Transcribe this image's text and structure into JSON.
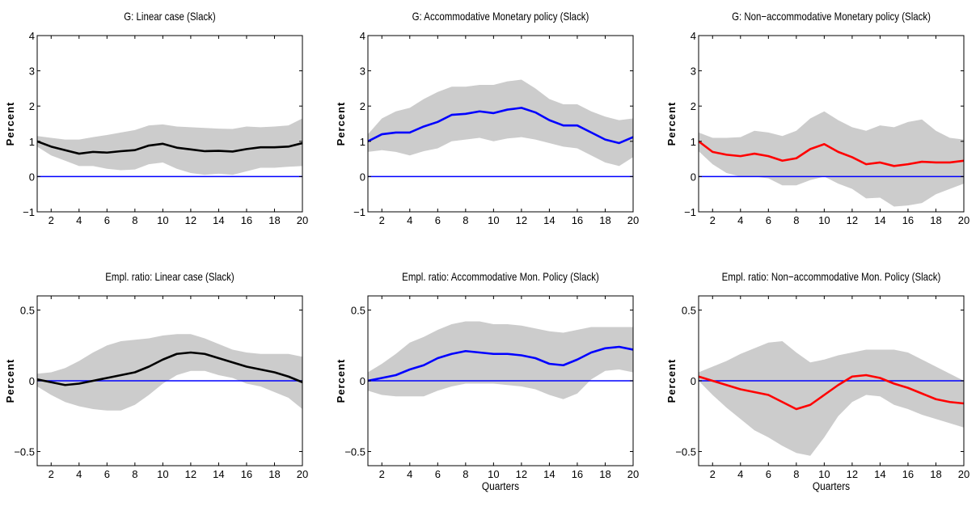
{
  "chart_data": [
    {
      "type": "line",
      "title": "G: Linear case (Slack)",
      "ylabel": "Percent",
      "xlabel": "",
      "xlim": [
        1,
        20
      ],
      "ylim": [
        -1,
        4
      ],
      "xticks": [
        2,
        4,
        6,
        8,
        10,
        12,
        14,
        16,
        18,
        20
      ],
      "yticks": [
        -1,
        0,
        1,
        2,
        3,
        4
      ],
      "ytick_labels": [
        "−1",
        "0",
        "1",
        "2",
        "3",
        "4"
      ],
      "line_color": "#000000",
      "band_color": "#cccccc",
      "zero_line_color": "#0000ff",
      "x": [
        1,
        2,
        3,
        4,
        5,
        6,
        7,
        8,
        9,
        10,
        11,
        12,
        13,
        14,
        15,
        16,
        17,
        18,
        19,
        20
      ],
      "values": [
        1.0,
        0.85,
        0.75,
        0.65,
        0.7,
        0.68,
        0.72,
        0.75,
        0.88,
        0.93,
        0.82,
        0.77,
        0.72,
        0.73,
        0.71,
        0.78,
        0.83,
        0.83,
        0.85,
        0.95
      ],
      "upper": [
        1.15,
        1.1,
        1.05,
        1.05,
        1.12,
        1.18,
        1.25,
        1.32,
        1.45,
        1.48,
        1.42,
        1.4,
        1.38,
        1.36,
        1.35,
        1.42,
        1.4,
        1.42,
        1.45,
        1.65
      ],
      "lower": [
        0.85,
        0.6,
        0.45,
        0.3,
        0.3,
        0.22,
        0.18,
        0.2,
        0.35,
        0.4,
        0.22,
        0.1,
        0.05,
        0.08,
        0.05,
        0.15,
        0.25,
        0.25,
        0.28,
        0.3
      ]
    },
    {
      "type": "line",
      "title": "G: Accommodative Monetary policy (Slack)",
      "ylabel": "Percent",
      "xlabel": "",
      "xlim": [
        1,
        20
      ],
      "ylim": [
        -1,
        4
      ],
      "xticks": [
        2,
        4,
        6,
        8,
        10,
        12,
        14,
        16,
        18,
        20
      ],
      "yticks": [
        -1,
        0,
        1,
        2,
        3,
        4
      ],
      "ytick_labels": [
        "−1",
        "0",
        "1",
        "2",
        "3",
        "4"
      ],
      "line_color": "#0000ff",
      "band_color": "#cccccc",
      "zero_line_color": "#0000ff",
      "x": [
        1,
        2,
        3,
        4,
        5,
        6,
        7,
        8,
        9,
        10,
        11,
        12,
        13,
        14,
        15,
        16,
        17,
        18,
        19,
        20
      ],
      "values": [
        1.0,
        1.2,
        1.25,
        1.25,
        1.42,
        1.55,
        1.75,
        1.78,
        1.85,
        1.8,
        1.9,
        1.95,
        1.82,
        1.6,
        1.45,
        1.45,
        1.25,
        1.05,
        0.95,
        1.12
      ],
      "upper": [
        1.2,
        1.65,
        1.85,
        1.95,
        2.2,
        2.4,
        2.55,
        2.55,
        2.6,
        2.6,
        2.7,
        2.75,
        2.5,
        2.2,
        2.05,
        2.05,
        1.85,
        1.7,
        1.6,
        1.65
      ],
      "lower": [
        0.7,
        0.75,
        0.7,
        0.6,
        0.72,
        0.8,
        1.0,
        1.05,
        1.1,
        1.0,
        1.08,
        1.12,
        1.05,
        0.95,
        0.85,
        0.8,
        0.6,
        0.4,
        0.3,
        0.55
      ]
    },
    {
      "type": "line",
      "title": "G: Non−accommodative Monetary policy (Slack)",
      "ylabel": "Percent",
      "xlabel": "",
      "xlim": [
        1,
        20
      ],
      "ylim": [
        -1,
        4
      ],
      "xticks": [
        2,
        4,
        6,
        8,
        10,
        12,
        14,
        16,
        18,
        20
      ],
      "yticks": [
        -1,
        0,
        1,
        2,
        3,
        4
      ],
      "ytick_labels": [
        "−1",
        "0",
        "1",
        "2",
        "3",
        "4"
      ],
      "line_color": "#ff0000",
      "band_color": "#cccccc",
      "zero_line_color": "#0000ff",
      "x": [
        1,
        2,
        3,
        4,
        5,
        6,
        7,
        8,
        9,
        10,
        11,
        12,
        13,
        14,
        15,
        16,
        17,
        18,
        19,
        20
      ],
      "values": [
        1.0,
        0.7,
        0.62,
        0.58,
        0.65,
        0.58,
        0.45,
        0.52,
        0.78,
        0.92,
        0.7,
        0.55,
        0.35,
        0.4,
        0.3,
        0.35,
        0.42,
        0.4,
        0.4,
        0.45
      ],
      "upper": [
        1.25,
        1.1,
        1.1,
        1.12,
        1.3,
        1.25,
        1.15,
        1.3,
        1.65,
        1.85,
        1.6,
        1.4,
        1.3,
        1.45,
        1.4,
        1.55,
        1.62,
        1.3,
        1.1,
        1.05
      ],
      "lower": [
        0.72,
        0.35,
        0.1,
        0.0,
        0.0,
        -0.05,
        -0.25,
        -0.25,
        -0.1,
        0.0,
        -0.2,
        -0.35,
        -0.62,
        -0.6,
        -0.85,
        -0.82,
        -0.75,
        -0.5,
        -0.35,
        -0.2
      ]
    },
    {
      "type": "line",
      "title": "Empl. ratio: Linear case (Slack)",
      "ylabel": "Percent",
      "xlabel": "",
      "xlim": [
        1,
        20
      ],
      "ylim": [
        -0.6,
        0.6
      ],
      "xticks": [
        2,
        4,
        6,
        8,
        10,
        12,
        14,
        16,
        18,
        20
      ],
      "yticks": [
        -0.5,
        0,
        0.5
      ],
      "ytick_labels": [
        "−0.5",
        "0",
        "0.5"
      ],
      "line_color": "#000000",
      "band_color": "#cccccc",
      "zero_line_color": "#0000ff",
      "x": [
        1,
        2,
        3,
        4,
        5,
        6,
        7,
        8,
        9,
        10,
        11,
        12,
        13,
        14,
        15,
        16,
        17,
        18,
        19,
        20
      ],
      "values": [
        0.01,
        -0.01,
        -0.03,
        -0.02,
        0.0,
        0.02,
        0.04,
        0.06,
        0.1,
        0.15,
        0.19,
        0.2,
        0.19,
        0.16,
        0.13,
        0.1,
        0.08,
        0.06,
        0.03,
        -0.01
      ],
      "upper": [
        0.05,
        0.06,
        0.09,
        0.14,
        0.2,
        0.25,
        0.28,
        0.29,
        0.3,
        0.32,
        0.33,
        0.33,
        0.3,
        0.26,
        0.22,
        0.2,
        0.19,
        0.19,
        0.19,
        0.17
      ],
      "lower": [
        -0.04,
        -0.1,
        -0.15,
        -0.18,
        -0.2,
        -0.21,
        -0.21,
        -0.17,
        -0.1,
        -0.02,
        0.04,
        0.07,
        0.07,
        0.04,
        0.02,
        -0.02,
        -0.04,
        -0.08,
        -0.12,
        -0.2
      ]
    },
    {
      "type": "line",
      "title": "Empl. ratio: Accommodative Mon. Policy (Slack)",
      "ylabel": "Percent",
      "xlabel": "Quarters",
      "xlim": [
        1,
        20
      ],
      "ylim": [
        -0.6,
        0.6
      ],
      "xticks": [
        2,
        4,
        6,
        8,
        10,
        12,
        14,
        16,
        18,
        20
      ],
      "yticks": [
        -0.5,
        0,
        0.5
      ],
      "ytick_labels": [
        "−0.5",
        "0",
        "0.5"
      ],
      "line_color": "#0000ff",
      "band_color": "#cccccc",
      "zero_line_color": "#0000ff",
      "x": [
        1,
        2,
        3,
        4,
        5,
        6,
        7,
        8,
        9,
        10,
        11,
        12,
        13,
        14,
        15,
        16,
        17,
        18,
        19,
        20
      ],
      "values": [
        0.0,
        0.02,
        0.04,
        0.08,
        0.11,
        0.16,
        0.19,
        0.21,
        0.2,
        0.19,
        0.19,
        0.18,
        0.16,
        0.12,
        0.11,
        0.15,
        0.2,
        0.23,
        0.24,
        0.22
      ],
      "upper": [
        0.06,
        0.12,
        0.19,
        0.27,
        0.31,
        0.36,
        0.4,
        0.42,
        0.42,
        0.4,
        0.4,
        0.39,
        0.37,
        0.35,
        0.34,
        0.36,
        0.38,
        0.38,
        0.38,
        0.38
      ],
      "lower": [
        -0.07,
        -0.1,
        -0.11,
        -0.11,
        -0.11,
        -0.07,
        -0.04,
        -0.02,
        -0.02,
        -0.02,
        -0.03,
        -0.04,
        -0.06,
        -0.1,
        -0.13,
        -0.09,
        0.01,
        0.07,
        0.08,
        0.06
      ]
    },
    {
      "type": "line",
      "title": "Empl. ratio: Non−accommodative Mon. Policy (Slack)",
      "ylabel": "Percent",
      "xlabel": "Quarters",
      "xlim": [
        1,
        20
      ],
      "ylim": [
        -0.6,
        0.6
      ],
      "xticks": [
        2,
        4,
        6,
        8,
        10,
        12,
        14,
        16,
        18,
        20
      ],
      "yticks": [
        -0.5,
        0,
        0.5
      ],
      "ytick_labels": [
        "−0.5",
        "0",
        "0.5"
      ],
      "line_color": "#ff0000",
      "band_color": "#cccccc",
      "zero_line_color": "#0000ff",
      "x": [
        1,
        2,
        3,
        4,
        5,
        6,
        7,
        8,
        9,
        10,
        11,
        12,
        13,
        14,
        15,
        16,
        17,
        18,
        19,
        20
      ],
      "values": [
        0.03,
        0.0,
        -0.03,
        -0.06,
        -0.08,
        -0.1,
        -0.15,
        -0.2,
        -0.17,
        -0.1,
        -0.03,
        0.03,
        0.04,
        0.02,
        -0.02,
        -0.05,
        -0.09,
        -0.13,
        -0.15,
        -0.16
      ],
      "upper": [
        0.06,
        0.1,
        0.14,
        0.19,
        0.23,
        0.27,
        0.28,
        0.2,
        0.13,
        0.15,
        0.18,
        0.2,
        0.22,
        0.22,
        0.22,
        0.2,
        0.15,
        0.1,
        0.05,
        0.0
      ],
      "lower": [
        0.0,
        -0.1,
        -0.19,
        -0.27,
        -0.35,
        -0.4,
        -0.46,
        -0.51,
        -0.53,
        -0.4,
        -0.25,
        -0.15,
        -0.1,
        -0.11,
        -0.17,
        -0.2,
        -0.24,
        -0.27,
        -0.3,
        -0.33
      ]
    }
  ]
}
